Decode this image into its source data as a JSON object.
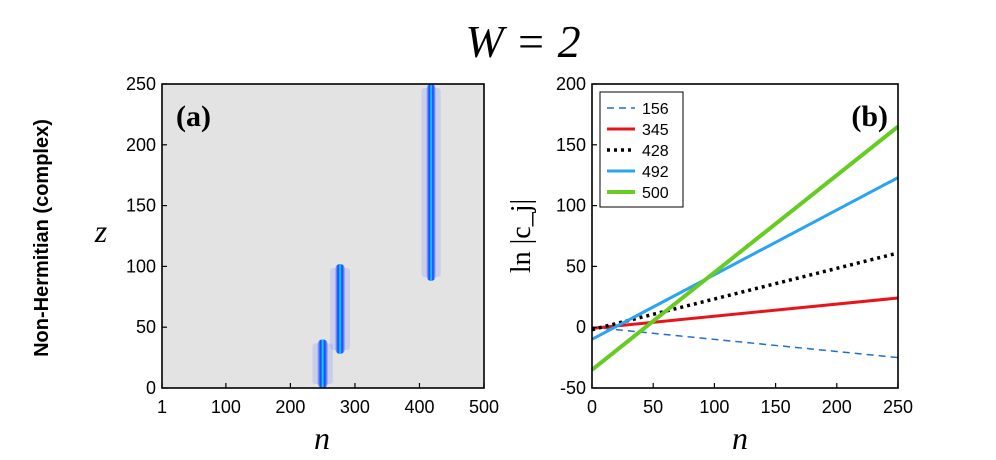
{
  "figure": {
    "title": "W = 2",
    "row_label": "Non-Hermitian (complex)"
  },
  "colors": {
    "background_panel_a": "#e3e3e3",
    "beam": "#1a3cff",
    "beam_core": "#00e5ff",
    "s156": "#1f6fd1",
    "s345": "#e8141c",
    "s428": "#000000",
    "s492": "#2aa3f0",
    "s500": "#66cc22"
  },
  "chart_data": [
    {
      "id": "a",
      "type": "heatmap",
      "panel_label": "(a)",
      "xlabel": "n",
      "ylabel": "z",
      "xlim": [
        1,
        500
      ],
      "ylim": [
        0,
        250
      ],
      "xticks": [
        1,
        100,
        200,
        300,
        400,
        500
      ],
      "yticks": [
        0,
        50,
        100,
        150,
        200,
        250
      ],
      "xtick_labels": [
        "1",
        "100",
        "200",
        "300",
        "400",
        "500"
      ],
      "ytick_labels": [
        "0",
        "50",
        "100",
        "150",
        "200",
        "250"
      ],
      "beams": [
        {
          "n_center": 250,
          "z_start": 0,
          "z_end": 40,
          "width": 10
        },
        {
          "n_center": 277,
          "z_start": 28,
          "z_end": 102,
          "width": 9
        },
        {
          "n_center": 418,
          "z_start": 88,
          "z_end": 250,
          "width": 8
        }
      ]
    },
    {
      "id": "b",
      "type": "line",
      "panel_label": "(b)",
      "xlabel": "n",
      "ylabel": "ln |c_j|",
      "xlim": [
        0,
        250
      ],
      "ylim": [
        -50,
        200
      ],
      "xticks": [
        0,
        50,
        100,
        150,
        200,
        250
      ],
      "yticks": [
        -50,
        0,
        50,
        100,
        150,
        200
      ],
      "xtick_labels": [
        "0",
        "50",
        "100",
        "150",
        "200",
        "250"
      ],
      "ytick_labels": [
        "-50",
        "0",
        "50",
        "100",
        "150",
        "200"
      ],
      "legend_position": "top-left",
      "series": [
        {
          "name": "156",
          "x": [
            0,
            250
          ],
          "y": [
            0,
            -25
          ],
          "style": "dashed",
          "color_key": "s156",
          "width": 1.5
        },
        {
          "name": "345",
          "x": [
            0,
            250
          ],
          "y": [
            -1,
            24
          ],
          "style": "solid",
          "color_key": "s345",
          "width": 3
        },
        {
          "name": "428",
          "x": [
            0,
            250
          ],
          "y": [
            -2,
            61
          ],
          "style": "dotted",
          "color_key": "s428",
          "width": 3.5
        },
        {
          "name": "492",
          "x": [
            0,
            250
          ],
          "y": [
            -10,
            123
          ],
          "style": "solid",
          "color_key": "s492",
          "width": 3
        },
        {
          "name": "500",
          "x": [
            0,
            250
          ],
          "y": [
            -35,
            165
          ],
          "style": "solid",
          "color_key": "s500",
          "width": 4
        }
      ]
    }
  ]
}
